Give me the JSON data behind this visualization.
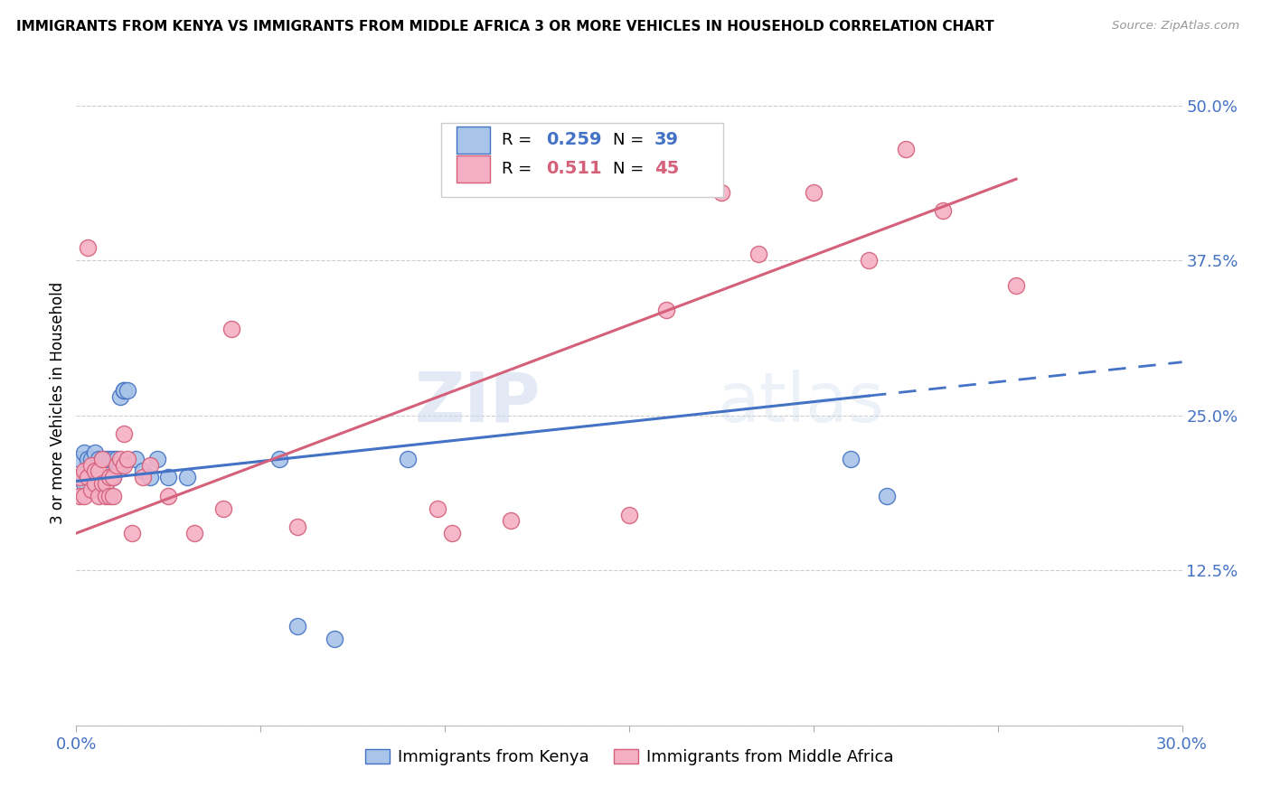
{
  "title": "IMMIGRANTS FROM KENYA VS IMMIGRANTS FROM MIDDLE AFRICA 3 OR MORE VEHICLES IN HOUSEHOLD CORRELATION CHART",
  "source": "Source: ZipAtlas.com",
  "ylabel": "3 or more Vehicles in Household",
  "kenya_color": "#a8c4e8",
  "kenya_color_dark": "#4472c4",
  "midafrica_color": "#f4afc4",
  "midafrica_color_dark": "#d4607a",
  "watermark": "ZIPatlas",
  "xlim": [
    0.0,
    0.3
  ],
  "ylim": [
    0.0,
    0.52
  ],
  "kenya_x": [
    0.001,
    0.002,
    0.002,
    0.003,
    0.003,
    0.004,
    0.004,
    0.005,
    0.005,
    0.005,
    0.006,
    0.006,
    0.007,
    0.007,
    0.008,
    0.008,
    0.009,
    0.009,
    0.01,
    0.01,
    0.011,
    0.011,
    0.012,
    0.012,
    0.013,
    0.014,
    0.015,
    0.016,
    0.017,
    0.02,
    0.022,
    0.025,
    0.028,
    0.055,
    0.06,
    0.065,
    0.085,
    0.21,
    0.22
  ],
  "kenya_y": [
    0.195,
    0.2,
    0.22,
    0.195,
    0.215,
    0.2,
    0.215,
    0.19,
    0.205,
    0.215,
    0.185,
    0.215,
    0.2,
    0.205,
    0.195,
    0.215,
    0.2,
    0.21,
    0.205,
    0.215,
    0.205,
    0.215,
    0.21,
    0.26,
    0.27,
    0.27,
    0.2,
    0.215,
    0.205,
    0.2,
    0.215,
    0.2,
    0.2,
    0.2,
    0.08,
    0.07,
    0.2,
    0.2,
    0.175
  ],
  "midafrica_x": [
    0.001,
    0.001,
    0.002,
    0.002,
    0.003,
    0.003,
    0.004,
    0.004,
    0.005,
    0.005,
    0.006,
    0.006,
    0.007,
    0.007,
    0.008,
    0.008,
    0.009,
    0.009,
    0.01,
    0.01,
    0.011,
    0.012,
    0.013,
    0.013,
    0.014,
    0.015,
    0.018,
    0.02,
    0.023,
    0.03,
    0.038,
    0.04,
    0.06,
    0.095,
    0.1,
    0.115,
    0.15,
    0.16,
    0.175,
    0.185,
    0.2,
    0.215,
    0.225,
    0.235,
    0.255
  ],
  "midafrica_y": [
    0.185,
    0.2,
    0.185,
    0.205,
    0.19,
    0.2,
    0.185,
    0.205,
    0.195,
    0.205,
    0.185,
    0.205,
    0.195,
    0.205,
    0.185,
    0.195,
    0.185,
    0.2,
    0.185,
    0.2,
    0.205,
    0.215,
    0.205,
    0.23,
    0.215,
    0.155,
    0.2,
    0.205,
    0.185,
    0.155,
    0.175,
    0.32,
    0.155,
    0.175,
    0.155,
    0.165,
    0.165,
    0.33,
    0.43,
    0.38,
    0.42,
    0.37,
    0.455,
    0.41,
    0.35
  ]
}
